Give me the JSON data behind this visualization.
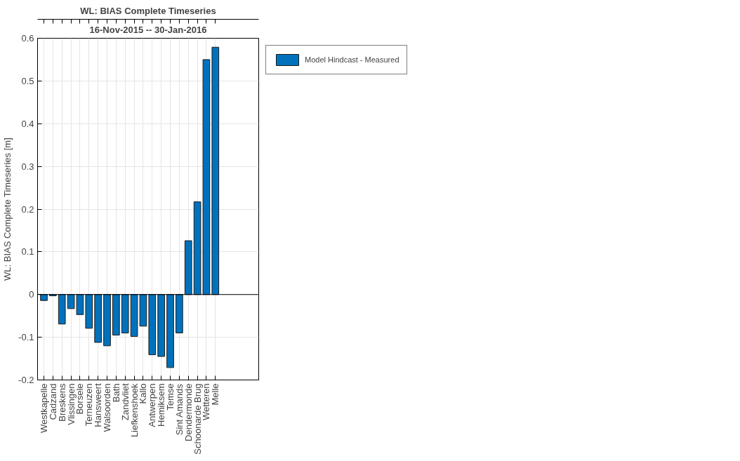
{
  "chart_data": {
    "type": "bar",
    "title": "WL: BIAS Complete Timeseries",
    "subtitle": "16-Nov-2015 -- 30-Jan-2016",
    "ylabel": "WL: BIAS Complete Timeseries [m]",
    "categories": [
      "Westkapelle",
      "Cadzand",
      "Breskens",
      "Vlissingen",
      "Borsele",
      "Terneuzen",
      "Hansweert",
      "Walsoorden",
      "Bath",
      "Zandvliet",
      "Liefkenshoek",
      "Kallo",
      "Antwerpen",
      "Hemiksem",
      "Temse",
      "Sint Amands",
      "Dendermonde",
      "Schoonarde Brug",
      "Wetteren",
      "Melle"
    ],
    "series": [
      {
        "name": "Model Hindcast - Measured",
        "color": "#0072bd",
        "values": [
          -0.014,
          -0.003,
          -0.069,
          -0.033,
          -0.047,
          -0.079,
          -0.112,
          -0.12,
          -0.095,
          -0.09,
          -0.098,
          -0.074,
          -0.141,
          -0.145,
          -0.171,
          -0.09,
          0.126,
          0.217,
          0.55,
          0.579
        ]
      }
    ],
    "ylim": [
      -0.2,
      0.6
    ],
    "yticks": [
      -0.2,
      -0.1,
      0,
      0.1,
      0.2,
      0.3,
      0.4,
      0.5,
      0.6
    ],
    "grid": true,
    "legend": "top right"
  }
}
